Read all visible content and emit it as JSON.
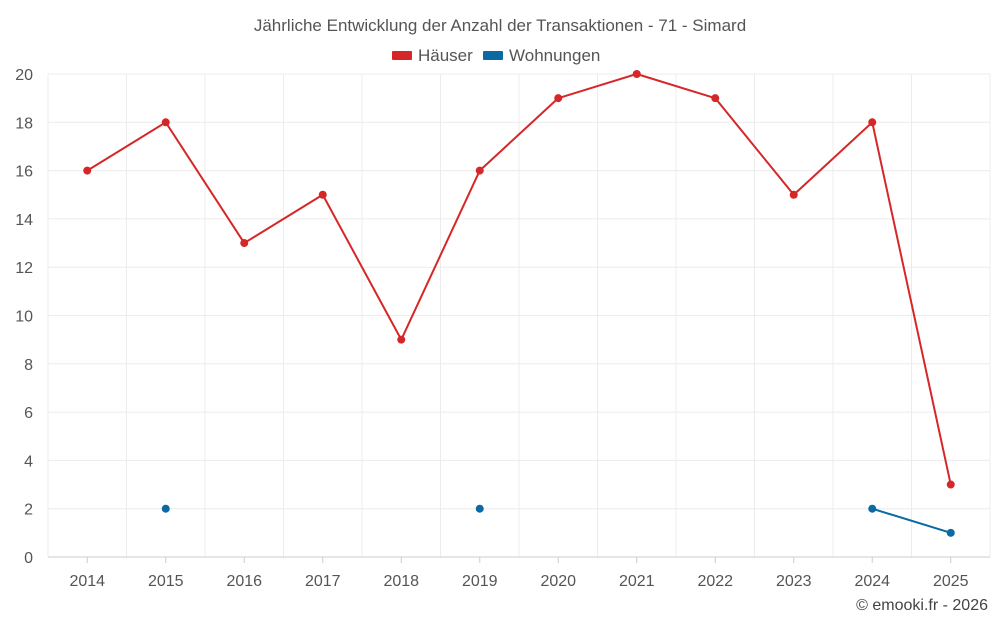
{
  "chart_data": {
    "type": "line",
    "title": "Jährliche Entwicklung der Anzahl der Transaktionen - 71 - Simard",
    "categories": [
      "2014",
      "2015",
      "2016",
      "2017",
      "2018",
      "2019",
      "2020",
      "2021",
      "2022",
      "2023",
      "2024",
      "2025"
    ],
    "series": [
      {
        "name": "Häuser",
        "color": "#d62728",
        "values": [
          16,
          18,
          13,
          15,
          9,
          16,
          19,
          20,
          19,
          15,
          18,
          3
        ]
      },
      {
        "name": "Wohnungen",
        "color": "#0b6aa2",
        "values": [
          null,
          2,
          null,
          null,
          null,
          2,
          null,
          null,
          null,
          null,
          2,
          1
        ]
      }
    ],
    "ylim": [
      0,
      20
    ],
    "yticks": [
      0,
      2,
      4,
      6,
      8,
      10,
      12,
      14,
      16,
      18,
      20
    ],
    "grid": true,
    "legend_position": "top-center",
    "xlabel": "",
    "ylabel": ""
  },
  "credit": "© emooki.fr - 2026"
}
